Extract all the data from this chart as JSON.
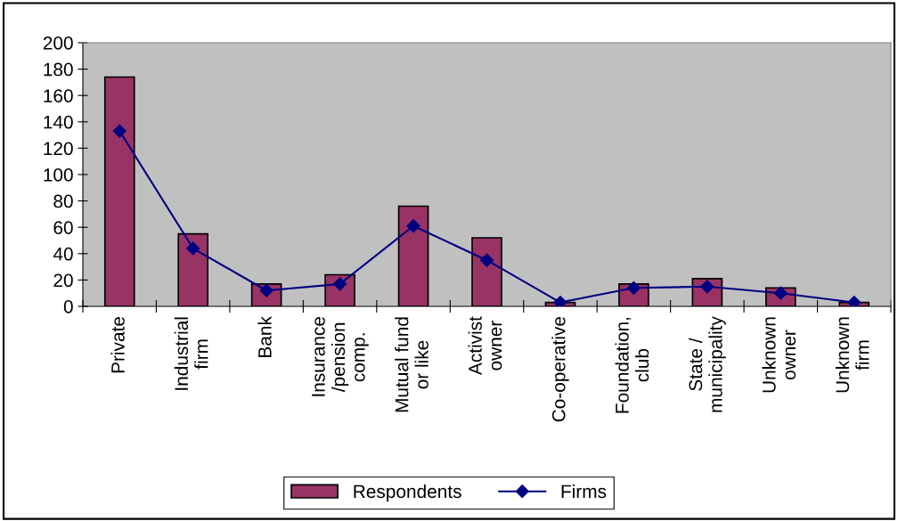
{
  "chart_data": {
    "type": "bar",
    "categories": [
      "Private",
      "Industrial\nfirm",
      "Bank",
      "Insurance\n/pension\ncomp.",
      "Mutual fund\nor like",
      "Activist\nowner",
      "Co-operative",
      "Foundation,\nclub",
      "State /\nmunicipality",
      "Unknown\nowner",
      "Unknown\nfirm"
    ],
    "series": [
      {
        "name": "Respondents",
        "color": "#993366",
        "values": [
          174,
          55,
          17,
          24,
          76,
          52,
          3,
          17,
          21,
          14,
          3
        ]
      },
      {
        "name": "Firms",
        "type": "line",
        "color": "#000080",
        "marker": "diamond",
        "values": [
          133,
          44,
          12,
          17,
          61,
          35,
          3,
          14,
          15,
          10,
          3
        ]
      }
    ],
    "ylim": [
      0,
      200
    ],
    "yticks": [
      0,
      20,
      40,
      60,
      80,
      100,
      120,
      140,
      160,
      180,
      200
    ],
    "grid": false,
    "legend": "bottom"
  }
}
